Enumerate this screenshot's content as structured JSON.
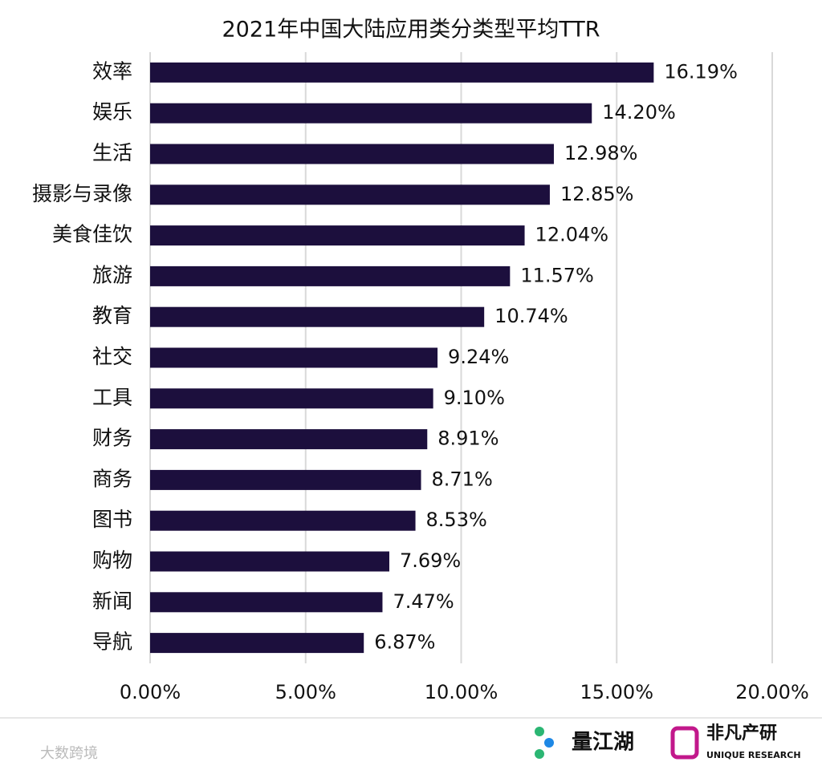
{
  "chart_data": {
    "type": "bar",
    "orientation": "horizontal",
    "title": "2021年中国大陆应用类分类型平均TTR",
    "categories": [
      "效率",
      "娱乐",
      "生活",
      "摄影与录像",
      "美食佳饮",
      "旅游",
      "教育",
      "社交",
      "工具",
      "财务",
      "商务",
      "图书",
      "购物",
      "新闻",
      "导航"
    ],
    "values": [
      16.19,
      14.2,
      12.98,
      12.85,
      12.04,
      11.57,
      10.74,
      9.24,
      9.1,
      8.91,
      8.71,
      8.53,
      7.69,
      7.47,
      6.87
    ],
    "value_labels": [
      "16.19%",
      "14.20%",
      "12.98%",
      "12.85%",
      "12.04%",
      "11.57%",
      "10.74%",
      "9.24%",
      "9.10%",
      "8.91%",
      "8.71%",
      "8.53%",
      "7.69%",
      "7.47%",
      "6.87%"
    ],
    "color": "#1c0f3d",
    "xlim": [
      0,
      20
    ],
    "xticks": [
      {
        "value": 0,
        "label": "0.00%"
      },
      {
        "value": 5,
        "label": "5.00%"
      },
      {
        "value": 10,
        "label": "10.00%"
      },
      {
        "value": 15,
        "label": "15.00%"
      },
      {
        "value": 20,
        "label": "20.00%"
      }
    ],
    "grid": true
  },
  "footer": {
    "watermark": "大数跨境",
    "logo_left": "量江湖",
    "logo_right": "非凡产研",
    "logo_right_sub": "UNIQUE RESEARCH"
  }
}
